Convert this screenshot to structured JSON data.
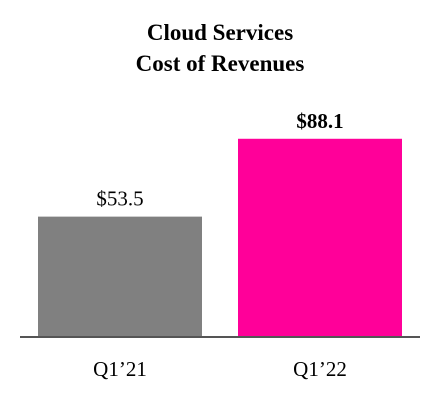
{
  "chart_data": {
    "type": "bar",
    "title_lines": [
      "Cloud Services",
      "Cost of Revenues"
    ],
    "categories": [
      "Q1’21",
      "Q1’22"
    ],
    "values": [
      53.5,
      88.1
    ],
    "value_labels": [
      "$53.5",
      "$88.1"
    ],
    "value_label_bold": [
      false,
      true
    ],
    "colors": [
      "#808080",
      "#ff0099"
    ],
    "axis_color": "#555555",
    "xlabel": "",
    "ylabel": "",
    "ylim": [
      0,
      100
    ],
    "grid": false,
    "legend": "none"
  }
}
